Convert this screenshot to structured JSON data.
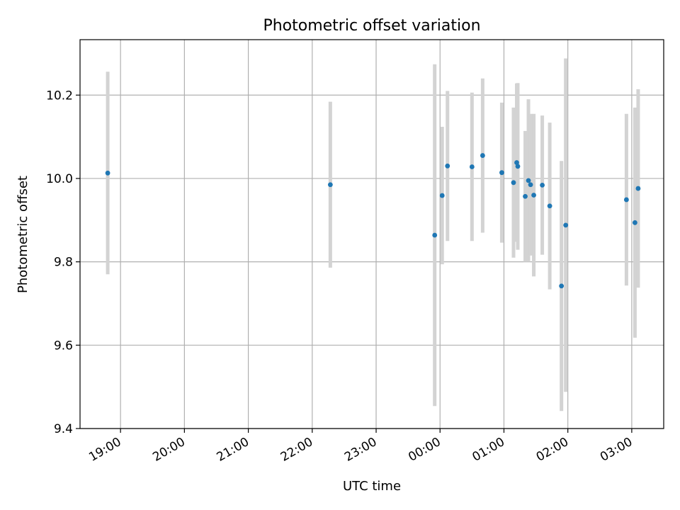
{
  "chart_data": {
    "type": "scatter",
    "title": "Photometric offset variation",
    "xlabel": "UTC time",
    "ylabel": "Photometric offset",
    "x_ticks": [
      "19:00",
      "20:00",
      "21:00",
      "22:00",
      "23:00",
      "00:00",
      "01:00",
      "02:00",
      "03:00"
    ],
    "y_ticks": [
      "9.4",
      "9.6",
      "9.8",
      "10.0",
      "10.2"
    ],
    "x_tick_values": [
      "19:00",
      "20:00",
      "21:00",
      "22:00",
      "23:00",
      "00:00",
      "01:00",
      "02:00",
      "03:00"
    ],
    "y_tick_values": [
      9.4,
      9.6,
      9.8,
      10.0,
      10.2
    ],
    "xlim": [
      "18:22",
      "03:30"
    ],
    "ylim": [
      9.4,
      10.333
    ],
    "grid": true,
    "point_color": "#1f77b4",
    "errorbar_color": "#d3d3d3",
    "points": [
      {
        "x": "18:48",
        "y": 10.013,
        "yerr": 0.243
      },
      {
        "x": "22:17",
        "y": 9.985,
        "yerr": 0.199
      },
      {
        "x": "23:55",
        "y": 9.864,
        "yerr": 0.41
      },
      {
        "x": "00:02",
        "y": 9.959,
        "yerr": 0.165
      },
      {
        "x": "00:07",
        "y": 10.03,
        "yerr": 0.18
      },
      {
        "x": "00:30",
        "y": 10.028,
        "yerr": 0.178
      },
      {
        "x": "00:40",
        "y": 10.055,
        "yerr": 0.185
      },
      {
        "x": "00:58",
        "y": 10.014,
        "yerr": 0.168
      },
      {
        "x": "01:09",
        "y": 9.99,
        "yerr": 0.18
      },
      {
        "x": "01:12",
        "y": 10.038,
        "yerr": 0.19
      },
      {
        "x": "01:13",
        "y": 10.029,
        "yerr": 0.2
      },
      {
        "x": "01:20",
        "y": 9.957,
        "yerr": 0.157
      },
      {
        "x": "01:23",
        "y": 9.995,
        "yerr": 0.195
      },
      {
        "x": "01:25",
        "y": 9.985,
        "yerr": 0.17
      },
      {
        "x": "01:28",
        "y": 9.96,
        "yerr": 0.195
      },
      {
        "x": "01:36",
        "y": 9.984,
        "yerr": 0.167
      },
      {
        "x": "01:43",
        "y": 9.934,
        "yerr": 0.2
      },
      {
        "x": "01:54",
        "y": 9.742,
        "yerr": 0.3
      },
      {
        "x": "01:58",
        "y": 9.888,
        "yerr": 0.4
      },
      {
        "x": "02:55",
        "y": 9.949,
        "yerr": 0.206
      },
      {
        "x": "03:03",
        "y": 9.894,
        "yerr": 0.276
      },
      {
        "x": "03:06",
        "y": 9.976,
        "yerr": 0.238
      }
    ]
  }
}
